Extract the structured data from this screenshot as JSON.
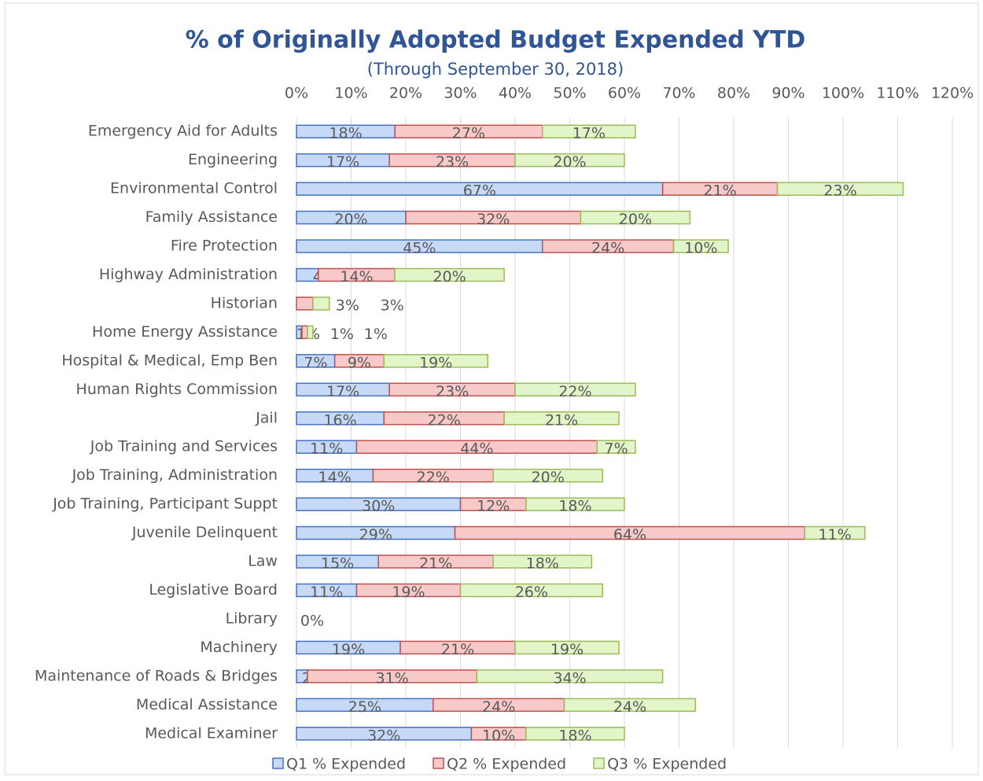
{
  "chart_data": {
    "type": "bar",
    "orientation": "horizontal",
    "stacked": true,
    "title": "% of Originally Adopted Budget Expended YTD",
    "subtitle": "(Through September 30, 2018)",
    "categories": [
      "Emergency Aid for Adults",
      "Engineering",
      "Environmental Control",
      "Family Assistance",
      "Fire Protection",
      "Highway Administration",
      "Historian",
      "Home Energy Assistance",
      "Hospital & Medical, Emp Ben",
      "Human Rights Commission",
      "Jail",
      "Job Training and Services",
      "Job Training, Administration",
      "Job Training, Participant Suppt",
      "Juvenile Delinquent",
      "Law",
      "Legislative Board",
      "Library",
      "Machinery",
      "Maintenance of Roads & Bridges",
      "Medical Assistance",
      "Medical Examiner"
    ],
    "series": [
      {
        "name": "Q1 % Expended",
        "color": "#c6d9f7",
        "stroke": "#4472c4",
        "values": [
          18,
          17,
          67,
          20,
          45,
          4,
          null,
          1,
          7,
          17,
          16,
          11,
          14,
          30,
          29,
          15,
          11,
          0,
          19,
          2,
          25,
          32
        ],
        "value_labels": [
          "18%",
          "17%",
          "67%",
          "20%",
          "45%",
          "4%",
          null,
          "1%",
          "7%",
          "17%",
          "16%",
          "11%",
          "14%",
          "30%",
          "29%",
          "15%",
          "11%",
          "0%",
          "19%",
          "2%",
          "25%",
          "32%"
        ]
      },
      {
        "name": "Q2 % Expended",
        "color": "#f8c9c9",
        "stroke": "#c0504d",
        "values": [
          27,
          23,
          21,
          32,
          24,
          14,
          3,
          1,
          9,
          23,
          22,
          44,
          22,
          12,
          64,
          21,
          19,
          null,
          21,
          31,
          24,
          10
        ],
        "value_labels": [
          "27%",
          "23%",
          "21%",
          "32%",
          "24%",
          "14%",
          "3%",
          "1%",
          "9%",
          "23%",
          "22%",
          "44%",
          "22%",
          "12%",
          "64%",
          "21%",
          "19%",
          null,
          "21%",
          "31%",
          "24%",
          "10%"
        ]
      },
      {
        "name": "Q3 % Expended",
        "color": "#e2f5c8",
        "stroke": "#9bbb59",
        "values": [
          17,
          20,
          23,
          20,
          10,
          20,
          3,
          1,
          19,
          22,
          21,
          7,
          20,
          18,
          11,
          18,
          26,
          null,
          19,
          34,
          24,
          18
        ],
        "value_labels": [
          "17%",
          "20%",
          "23%",
          "20%",
          "10%",
          "20%",
          "3%",
          "1%",
          "19%",
          "22%",
          "21%",
          "7%",
          "20%",
          "18%",
          "11%",
          "18%",
          "26%",
          null,
          "19%",
          "34%",
          "24%",
          "18%"
        ]
      }
    ],
    "xlim": [
      0,
      120
    ],
    "xticks": [
      {
        "value": 0,
        "label": "0%"
      },
      {
        "value": 10,
        "label": "10%"
      },
      {
        "value": 20,
        "label": "20%"
      },
      {
        "value": 30,
        "label": "30%"
      },
      {
        "value": 40,
        "label": "40%"
      },
      {
        "value": 50,
        "label": "50%"
      },
      {
        "value": 60,
        "label": "60%"
      },
      {
        "value": 70,
        "label": "70%"
      },
      {
        "value": 80,
        "label": "80%"
      },
      {
        "value": 90,
        "label": "90%"
      },
      {
        "value": 100,
        "label": "100%"
      },
      {
        "value": 110,
        "label": "110%"
      },
      {
        "value": 120,
        "label": "120%"
      }
    ],
    "grid": true,
    "legend": "bottom"
  }
}
